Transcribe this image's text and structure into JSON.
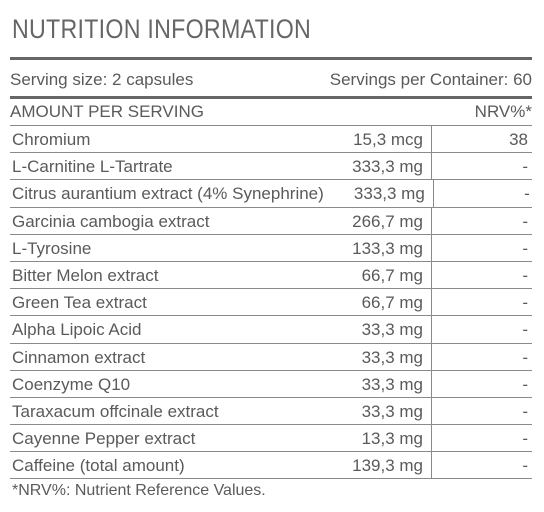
{
  "title": "NUTRITION INFORMATION",
  "serving": {
    "size_label": "Serving size: 2 capsules",
    "per_container_label": "Servings per Container: 60"
  },
  "header": {
    "amount_label": "AMOUNT PER SERVING",
    "nrv_label": "NRV%*"
  },
  "rows": [
    {
      "name": "Chromium",
      "amount": "15,3 mcg",
      "nrv": "38"
    },
    {
      "name": "L-Carnitine L-Tartrate",
      "amount": "333,3 mg",
      "nrv": "-"
    },
    {
      "name": "Citrus aurantium extract (4% Synephrine)",
      "amount": "333,3 mg",
      "nrv": "-"
    },
    {
      "name": "Garcinia cambogia extract",
      "amount": "266,7 mg",
      "nrv": "-"
    },
    {
      "name": "L-Tyrosine",
      "amount": "133,3 mg",
      "nrv": "-"
    },
    {
      "name": "Bitter Melon extract",
      "amount": "66,7 mg",
      "nrv": "-"
    },
    {
      "name": "Green Tea extract",
      "amount": "66,7 mg",
      "nrv": "-"
    },
    {
      "name": "Alpha Lipoic Acid",
      "amount": "33,3 mg",
      "nrv": "-"
    },
    {
      "name": "Cinnamon extract",
      "amount": "33,3 mg",
      "nrv": "-"
    },
    {
      "name": "Coenzyme Q10",
      "amount": "33,3 mg",
      "nrv": "-"
    },
    {
      "name": "Taraxacum offcinale extract",
      "amount": "33,3 mg",
      "nrv": "-"
    },
    {
      "name": "Cayenne Pepper extract",
      "amount": "13,3 mg",
      "nrv": "-"
    },
    {
      "name": "Caffeine (total amount)",
      "amount": "139,3 mg",
      "nrv": "-"
    }
  ],
  "footnote": "*NRV%: Nutrient Reference Values."
}
